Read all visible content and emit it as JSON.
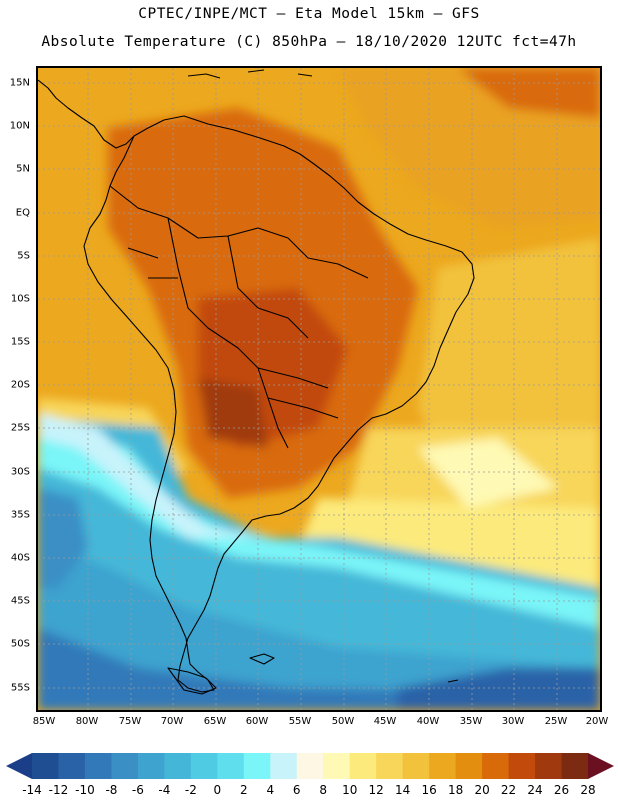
{
  "header": {
    "line1": "CPTEC/INPE/MCT –  Eta Model 15km – GFS",
    "line2": "Absolute Temperature (C) 850hPa – 18/10/2020 12UTC fct=47h"
  },
  "map": {
    "lat_labels": [
      "15N",
      "10N",
      "5N",
      "EQ",
      "5S",
      "10S",
      "15S",
      "20S",
      "25S",
      "30S",
      "35S",
      "40S",
      "45S",
      "50S",
      "55S"
    ],
    "lon_labels": [
      "85W",
      "80W",
      "75W",
      "70W",
      "65W",
      "60W",
      "55W",
      "50W",
      "45W",
      "40W",
      "35W",
      "30W",
      "25W",
      "20W"
    ],
    "grid_color": "#9a9a9a",
    "coast_color": "#000000"
  },
  "colorbar": {
    "labels": [
      "-14",
      "-12",
      "-10",
      "-8",
      "-6",
      "-4",
      "-2",
      "0",
      "2",
      "4",
      "6",
      "8",
      "10",
      "12",
      "14",
      "16",
      "18",
      "20",
      "22",
      "24",
      "26",
      "28"
    ],
    "colors": [
      "#1f4e93",
      "#2a62a8",
      "#3279b9",
      "#3a8fc5",
      "#3ea3cf",
      "#44b7d8",
      "#4fcbe4",
      "#5fdfee",
      "#7af5f8",
      "#c8f3fb",
      "#fdf7e3",
      "#fef9b4",
      "#fcea7c",
      "#f8d65a",
      "#f2c23c",
      "#eca81e",
      "#e48e10",
      "#d96a0a",
      "#c24a0a",
      "#a03a0e",
      "#7c2a12"
    ],
    "under_color": "#1a3f88",
    "over_color": "#6a1020"
  }
}
